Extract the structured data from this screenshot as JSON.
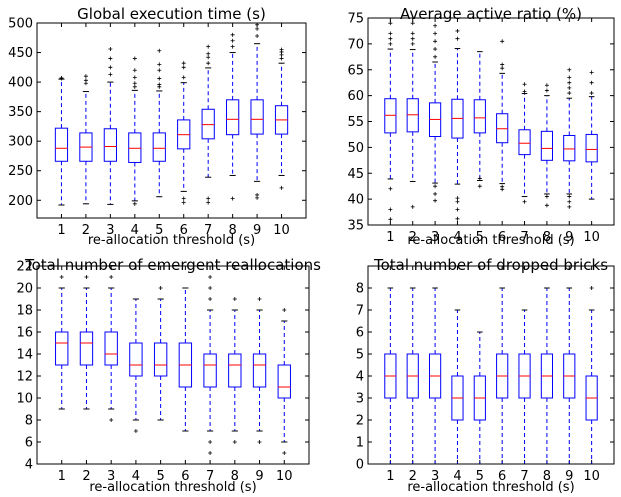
{
  "chart_data": [
    {
      "type": "boxplot",
      "title": "Global execution time (s)",
      "xlabel": "re-allocation threshold (s)",
      "ylabel": "",
      "categories": [
        "1",
        "2",
        "3",
        "4",
        "5",
        "6",
        "7",
        "8",
        "9",
        "10"
      ],
      "ylim": [
        170,
        500
      ],
      "yticks": [
        200,
        250,
        300,
        350,
        400,
        450,
        500
      ],
      "box_color": "#0000ff",
      "median_color": "#ff0000",
      "boxes": [
        {
          "whislo": 192,
          "q1": 266,
          "med": 288,
          "q3": 322,
          "whishi": 405,
          "fliers": [
            406,
            407
          ]
        },
        {
          "whislo": 194,
          "q1": 266,
          "med": 290,
          "q3": 314,
          "whishi": 384,
          "fliers": [
            398,
            403,
            410
          ]
        },
        {
          "whislo": 193,
          "q1": 266,
          "med": 291,
          "q3": 321,
          "whishi": 400,
          "fliers": [
            413,
            425,
            440,
            456
          ]
        },
        {
          "whislo": 199,
          "q1": 264,
          "med": 288,
          "q3": 314,
          "whishi": 386,
          "fliers": [
            194,
            392,
            398,
            408,
            420,
            440
          ]
        },
        {
          "whislo": 206,
          "q1": 266,
          "med": 288,
          "q3": 314,
          "whishi": 385,
          "fliers": [
            392,
            396,
            406,
            420,
            430,
            453
          ]
        },
        {
          "whislo": 215,
          "q1": 287,
          "med": 311,
          "q3": 336,
          "whishi": 399,
          "fliers": [
            196,
            203,
            408,
            425,
            432
          ]
        },
        {
          "whislo": 239,
          "q1": 304,
          "med": 328,
          "q3": 354,
          "whishi": 424,
          "fliers": [
            196,
            203,
            432,
            442,
            448,
            460
          ]
        },
        {
          "whislo": 242,
          "q1": 311,
          "med": 337,
          "q3": 370,
          "whishi": 450,
          "fliers": [
            203,
            460,
            470,
            480
          ]
        },
        {
          "whislo": 232,
          "q1": 312,
          "med": 337,
          "q3": 370,
          "whishi": 465,
          "fliers": [
            204,
            209,
            478,
            490,
            497
          ]
        },
        {
          "whislo": 242,
          "q1": 312,
          "med": 336,
          "q3": 360,
          "whishi": 432,
          "fliers": [
            221,
            440,
            446,
            451,
            455
          ]
        }
      ]
    },
    {
      "type": "boxplot",
      "title": "Average active ratio (%)",
      "xlabel": "re-allocation threshold (s)",
      "ylabel": "",
      "categories": [
        "1",
        "2",
        "3",
        "4",
        "5",
        "6",
        "7",
        "8",
        "9",
        "10"
      ],
      "ylim": [
        35,
        75
      ],
      "yticks": [
        35,
        40,
        45,
        50,
        55,
        60,
        65,
        70,
        75
      ],
      "box_color": "#0000ff",
      "median_color": "#ff0000",
      "boxes": [
        {
          "whislo": 43.9,
          "q1": 52.8,
          "med": 56.2,
          "q3": 59.4,
          "whishi": 69.0,
          "fliers": [
            36.1,
            38.0,
            42.0,
            70.0,
            71.0,
            72.0,
            74.0
          ]
        },
        {
          "whislo": 43.4,
          "q1": 53.0,
          "med": 56.3,
          "q3": 59.4,
          "whishi": 68.9,
          "fliers": [
            38.5,
            70.0,
            71.0,
            72.0,
            74.0
          ]
        },
        {
          "whislo": 43.1,
          "q1": 52.1,
          "med": 55.4,
          "q3": 58.6,
          "whishi": 66.5,
          "fliers": [
            39.7,
            41.0,
            42.5,
            67.5,
            69.0,
            70.5,
            72.0,
            73.5
          ]
        },
        {
          "whislo": 42.9,
          "q1": 51.8,
          "med": 55.6,
          "q3": 59.3,
          "whishi": 69.1,
          "fliers": [
            36.2,
            38.0,
            39.5,
            40.2,
            71.0,
            72.5
          ]
        },
        {
          "whislo": 43.6,
          "q1": 52.8,
          "med": 55.7,
          "q3": 59.2,
          "whishi": 68.5,
          "fliers": [
            42.5,
            44.0
          ]
        },
        {
          "whislo": 43.0,
          "q1": 50.9,
          "med": 53.6,
          "q3": 56.5,
          "whishi": 64.3,
          "fliers": [
            41.9,
            42.4,
            65.3,
            66.0,
            70.5
          ]
        },
        {
          "whislo": 40.5,
          "q1": 48.6,
          "med": 50.8,
          "q3": 53.4,
          "whishi": 60.4,
          "fliers": [
            39.5,
            60.8,
            62.2
          ]
        },
        {
          "whislo": 41.0,
          "q1": 47.5,
          "med": 49.8,
          "q3": 53.1,
          "whishi": 60.0,
          "fliers": [
            38.8,
            40.5,
            61.0,
            62.0
          ]
        },
        {
          "whislo": 41.0,
          "q1": 47.4,
          "med": 49.7,
          "q3": 52.3,
          "whishi": 59.5,
          "fliers": [
            38.5,
            39.5,
            40.5,
            60.5,
            61.5,
            62.5,
            63.5,
            65.0
          ]
        },
        {
          "whislo": 40.0,
          "q1": 47.2,
          "med": 49.6,
          "q3": 52.5,
          "whishi": 59.8,
          "fliers": [
            60.5,
            62.5,
            64.5
          ]
        }
      ]
    },
    {
      "type": "boxplot",
      "title": "Total number of emergent reallocations",
      "xlabel": "re-allocation threshold (s)",
      "ylabel": "",
      "categories": [
        "1",
        "2",
        "3",
        "4",
        "5",
        "6",
        "7",
        "8",
        "9",
        "10"
      ],
      "ylim": [
        4,
        22
      ],
      "yticks": [
        4,
        6,
        8,
        10,
        12,
        14,
        16,
        18,
        20,
        22
      ],
      "box_color": "#0000ff",
      "median_color": "#ff0000",
      "boxes": [
        {
          "whislo": 9,
          "q1": 13,
          "med": 15,
          "q3": 16,
          "whishi": 20,
          "fliers": [
            21
          ]
        },
        {
          "whislo": 9,
          "q1": 13,
          "med": 15,
          "q3": 16,
          "whishi": 20,
          "fliers": [
            21
          ]
        },
        {
          "whislo": 9,
          "q1": 13,
          "med": 14,
          "q3": 16,
          "whishi": 20,
          "fliers": [
            8,
            21
          ]
        },
        {
          "whislo": 8,
          "q1": 12,
          "med": 13,
          "q3": 15,
          "whishi": 19,
          "fliers": [
            7
          ]
        },
        {
          "whislo": 8,
          "q1": 12,
          "med": 13,
          "q3": 15,
          "whishi": 19,
          "fliers": [
            20
          ]
        },
        {
          "whislo": 7,
          "q1": 11,
          "med": 13,
          "q3": 15,
          "whishi": 20,
          "fliers": []
        },
        {
          "whislo": 7,
          "q1": 11,
          "med": 13,
          "q3": 14,
          "whishi": 18,
          "fliers": [
            5,
            6,
            19,
            20,
            21
          ]
        },
        {
          "whislo": 7,
          "q1": 11,
          "med": 13,
          "q3": 14,
          "whishi": 18,
          "fliers": [
            6,
            19
          ]
        },
        {
          "whislo": 7,
          "q1": 11,
          "med": 13,
          "q3": 14,
          "whishi": 18,
          "fliers": [
            6,
            19
          ]
        },
        {
          "whislo": 6,
          "q1": 10,
          "med": 11,
          "q3": 13,
          "whishi": 17,
          "fliers": [
            5,
            18
          ]
        }
      ]
    },
    {
      "type": "boxplot",
      "title": "Total number of dropped bricks",
      "xlabel": "re-allocation threshold (s)",
      "ylabel": "",
      "categories": [
        "1",
        "2",
        "3",
        "4",
        "5",
        "6",
        "7",
        "8",
        "9",
        "10"
      ],
      "ylim": [
        0,
        9
      ],
      "yticks": [
        0,
        1,
        2,
        3,
        4,
        5,
        6,
        7,
        8
      ],
      "box_color": "#0000ff",
      "median_color": "#ff0000",
      "boxes": [
        {
          "whislo": 0,
          "q1": 3,
          "med": 4,
          "q3": 5,
          "whishi": 8,
          "fliers": []
        },
        {
          "whislo": 0,
          "q1": 3,
          "med": 4,
          "q3": 5,
          "whishi": 8,
          "fliers": []
        },
        {
          "whislo": 0,
          "q1": 3,
          "med": 4,
          "q3": 5,
          "whishi": 8,
          "fliers": []
        },
        {
          "whislo": 0,
          "q1": 2,
          "med": 3,
          "q3": 4,
          "whishi": 7,
          "fliers": []
        },
        {
          "whislo": 0,
          "q1": 2,
          "med": 3,
          "q3": 4,
          "whishi": 6,
          "fliers": []
        },
        {
          "whislo": 0,
          "q1": 3,
          "med": 4,
          "q3": 5,
          "whishi": 8,
          "fliers": []
        },
        {
          "whislo": 0,
          "q1": 3,
          "med": 4,
          "q3": 5,
          "whishi": 7,
          "fliers": []
        },
        {
          "whislo": 0,
          "q1": 3,
          "med": 4,
          "q3": 5,
          "whishi": 8,
          "fliers": []
        },
        {
          "whislo": 0,
          "q1": 3,
          "med": 4,
          "q3": 5,
          "whishi": 8,
          "fliers": []
        },
        {
          "whislo": 0,
          "q1": 2,
          "med": 3,
          "q3": 4,
          "whishi": 7,
          "fliers": [
            8
          ]
        }
      ]
    }
  ]
}
